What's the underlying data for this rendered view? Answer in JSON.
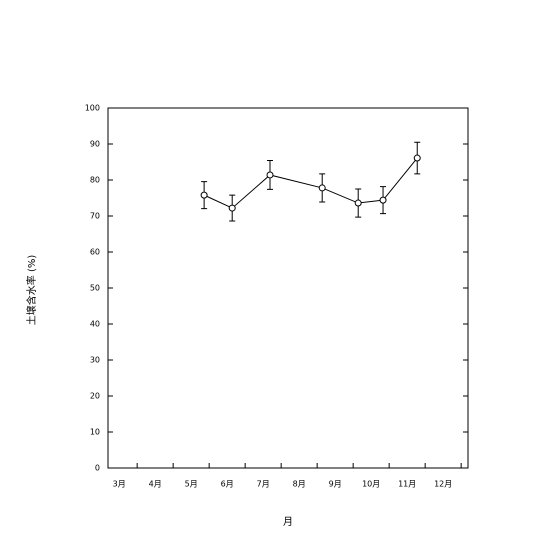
{
  "chart_data": {
    "type": "line",
    "x_label": "月",
    "y_label": "土壌含水率 (%)",
    "xlim": [
      3.19,
      13.19
    ],
    "ylim": [
      0,
      100
    ],
    "yticks": [
      0,
      10,
      20,
      30,
      40,
      50,
      60,
      70,
      80,
      90,
      100
    ],
    "xticks": [
      {
        "value": 3.5,
        "label": "3月"
      },
      {
        "value": 4.5,
        "label": "4月"
      },
      {
        "value": 5.5,
        "label": "5月"
      },
      {
        "value": 6.5,
        "label": "6月"
      },
      {
        "value": 7.5,
        "label": "7月"
      },
      {
        "value": 8.5,
        "label": "8月"
      },
      {
        "value": 9.5,
        "label": "9月"
      },
      {
        "value": 10.5,
        "label": "10月"
      },
      {
        "value": 11.5,
        "label": "11月"
      },
      {
        "value": 12.5,
        "label": "12月"
      }
    ],
    "xtick_marks": [
      4,
      5,
      6,
      7,
      8,
      9,
      10,
      11,
      12,
      13
    ],
    "x": [
      5.86,
      6.64,
      7.69,
      9.14,
      10.14,
      10.83,
      11.78
    ],
    "series": [
      {
        "color": "#000000",
        "values": [
          75.8,
          72.2,
          81.4,
          77.8,
          73.6,
          74.4,
          86.1
        ],
        "errors": [
          3.75,
          3.6,
          4.0,
          3.9,
          3.9,
          3.75,
          4.4
        ]
      }
    ]
  }
}
